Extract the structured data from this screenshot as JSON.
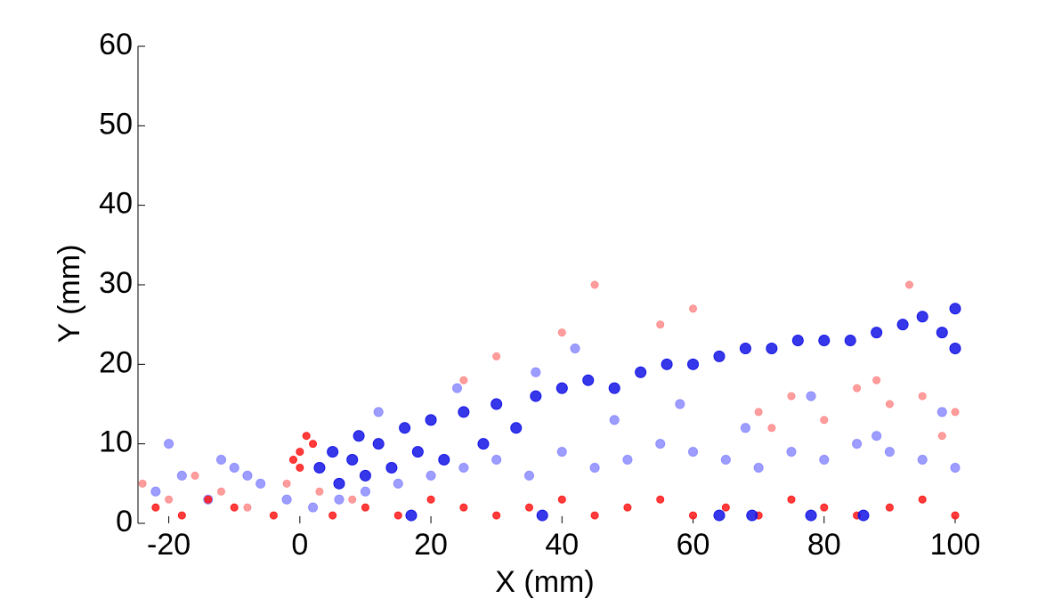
{
  "chart_data": {
    "type": "scatter",
    "xlabel": "X (mm)",
    "ylabel": "Y (mm)",
    "xlim": [
      -24.7,
      100
    ],
    "xticks": [
      -20,
      0,
      20,
      40,
      60,
      80,
      100
    ],
    "ylim": [
      0,
      60
    ],
    "yticks": [
      0,
      10,
      20,
      30,
      40,
      50,
      60
    ],
    "series": [
      {
        "color": "#ff8c8c",
        "marker_size": 4,
        "x": [
          -24,
          -20,
          -16,
          -12,
          -8,
          -2,
          3,
          8,
          30,
          45,
          55,
          70,
          75,
          80,
          85,
          90,
          95,
          100,
          72,
          88,
          98,
          60,
          25,
          40,
          93
        ],
        "values": [
          5,
          3,
          6,
          4,
          2,
          5,
          4,
          3,
          21,
          30,
          25,
          14,
          16,
          13,
          17,
          15,
          16,
          14,
          12,
          18,
          11,
          27,
          18,
          24,
          30
        ]
      },
      {
        "color": "#8c8cff",
        "marker_size": 5,
        "x": [
          -22,
          -18,
          -14,
          -10,
          -6,
          -2,
          -20,
          -12,
          -8,
          2,
          6,
          10,
          15,
          20,
          25,
          30,
          35,
          40,
          45,
          50,
          55,
          60,
          65,
          70,
          75,
          80,
          85,
          90,
          95,
          100,
          12,
          24,
          36,
          48,
          58,
          68,
          78,
          88,
          98,
          42
        ],
        "values": [
          4,
          6,
          3,
          7,
          5,
          3,
          10,
          8,
          6,
          2,
          3,
          4,
          5,
          6,
          7,
          8,
          6,
          9,
          7,
          8,
          10,
          9,
          8,
          7,
          9,
          8,
          10,
          9,
          8,
          7,
          14,
          17,
          19,
          13,
          15,
          12,
          16,
          11,
          14,
          22
        ]
      },
      {
        "color": "#ff1a1a",
        "marker_size": 4,
        "x": [
          -22,
          -18,
          -14,
          -10,
          -4,
          0,
          1,
          -1,
          2,
          0,
          5,
          10,
          15,
          20,
          25,
          30,
          35,
          40,
          45,
          50,
          55,
          60,
          65,
          70,
          75,
          80,
          85,
          90,
          95,
          100
        ],
        "values": [
          2,
          1,
          3,
          2,
          1,
          9,
          11,
          8,
          10,
          7,
          1,
          2,
          1,
          3,
          2,
          1,
          2,
          3,
          1,
          2,
          3,
          1,
          2,
          1,
          3,
          2,
          1,
          2,
          3,
          1
        ]
      },
      {
        "color": "#1414e6",
        "marker_size": 6,
        "x": [
          3,
          5,
          6,
          8,
          9,
          10,
          12,
          14,
          16,
          18,
          20,
          22,
          25,
          28,
          30,
          33,
          36,
          40,
          44,
          48,
          52,
          56,
          60,
          64,
          68,
          72,
          76,
          80,
          84,
          88,
          92,
          95,
          98,
          100,
          100,
          17,
          37,
          64,
          69,
          78,
          86
        ],
        "values": [
          7,
          9,
          5,
          8,
          11,
          6,
          10,
          7,
          12,
          9,
          13,
          8,
          14,
          10,
          15,
          12,
          16,
          17,
          18,
          17,
          19,
          20,
          20,
          21,
          22,
          22,
          23,
          23,
          23,
          24,
          25,
          26,
          24,
          27,
          22,
          1,
          1,
          1,
          1,
          1,
          1
        ]
      }
    ]
  }
}
